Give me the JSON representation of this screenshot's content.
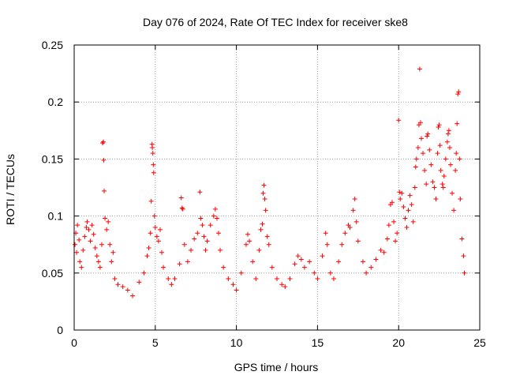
{
  "chart_data": {
    "type": "scatter",
    "title": "Day 076 of 2024, Rate Of TEC Index for receiver ske8",
    "xlabel": "GPS time / hours",
    "ylabel": "ROTI / TECUs",
    "xlim": [
      0,
      25
    ],
    "ylim": [
      0,
      0.25
    ],
    "x_ticks": [
      0,
      5,
      10,
      15,
      20,
      25
    ],
    "x_tick_labels": [
      "0",
      "5",
      "10",
      "15",
      "20",
      "25"
    ],
    "y_ticks": [
      0,
      0.05,
      0.1,
      0.15,
      0.2,
      0.25
    ],
    "y_tick_labels": [
      "0",
      "0.05",
      "0.1",
      "0.15",
      "0.2",
      "0.25"
    ],
    "grid": true,
    "marker": "+",
    "color": "#ff0000",
    "series": [
      {
        "name": "ROTI",
        "points": [
          [
            0.05,
            0.075
          ],
          [
            0.1,
            0.085
          ],
          [
            0.15,
            0.068
          ],
          [
            0.2,
            0.092
          ],
          [
            0.3,
            0.079
          ],
          [
            0.35,
            0.06
          ],
          [
            0.45,
            0.055
          ],
          [
            0.55,
            0.07
          ],
          [
            0.65,
            0.082
          ],
          [
            0.75,
            0.09
          ],
          [
            0.8,
            0.095
          ],
          [
            0.9,
            0.088
          ],
          [
            1.0,
            0.078
          ],
          [
            1.1,
            0.092
          ],
          [
            1.2,
            0.084
          ],
          [
            1.3,
            0.072
          ],
          [
            1.4,
            0.065
          ],
          [
            1.5,
            0.06
          ],
          [
            1.6,
            0.055
          ],
          [
            1.7,
            0.075
          ],
          [
            1.75,
            0.164
          ],
          [
            1.8,
            0.165
          ],
          [
            1.82,
            0.149
          ],
          [
            1.85,
            0.122
          ],
          [
            1.9,
            0.098
          ],
          [
            2.0,
            0.088
          ],
          [
            2.1,
            0.095
          ],
          [
            2.2,
            0.075
          ],
          [
            2.3,
            0.06
          ],
          [
            2.4,
            0.068
          ],
          [
            2.5,
            0.045
          ],
          [
            2.7,
            0.04
          ],
          [
            3.0,
            0.038
          ],
          [
            3.3,
            0.035
          ],
          [
            3.6,
            0.03
          ],
          [
            4.0,
            0.042
          ],
          [
            4.3,
            0.05
          ],
          [
            4.5,
            0.065
          ],
          [
            4.6,
            0.072
          ],
          [
            4.7,
            0.085
          ],
          [
            4.75,
            0.113
          ],
          [
            4.8,
            0.163
          ],
          [
            4.82,
            0.16
          ],
          [
            4.85,
            0.155
          ],
          [
            4.88,
            0.145
          ],
          [
            4.9,
            0.138
          ],
          [
            4.95,
            0.1
          ],
          [
            5.0,
            0.09
          ],
          [
            5.1,
            0.082
          ],
          [
            5.2,
            0.078
          ],
          [
            5.3,
            0.088
          ],
          [
            5.4,
            0.068
          ],
          [
            5.5,
            0.055
          ],
          [
            5.8,
            0.045
          ],
          [
            6.0,
            0.04
          ],
          [
            6.2,
            0.045
          ],
          [
            6.5,
            0.058
          ],
          [
            6.6,
            0.116
          ],
          [
            6.65,
            0.107
          ],
          [
            6.7,
            0.106
          ],
          [
            6.8,
            0.075
          ],
          [
            7.0,
            0.06
          ],
          [
            7.2,
            0.07
          ],
          [
            7.4,
            0.08
          ],
          [
            7.6,
            0.085
          ],
          [
            7.75,
            0.121
          ],
          [
            7.8,
            0.098
          ],
          [
            7.9,
            0.092
          ],
          [
            8.0,
            0.082
          ],
          [
            8.1,
            0.07
          ],
          [
            8.2,
            0.078
          ],
          [
            8.4,
            0.092
          ],
          [
            8.6,
            0.1
          ],
          [
            8.7,
            0.106
          ],
          [
            8.8,
            0.098
          ],
          [
            8.9,
            0.085
          ],
          [
            9.0,
            0.07
          ],
          [
            9.2,
            0.055
          ],
          [
            9.5,
            0.045
          ],
          [
            9.8,
            0.04
          ],
          [
            10.0,
            0.035
          ],
          [
            10.3,
            0.05
          ],
          [
            10.6,
            0.075
          ],
          [
            10.7,
            0.084
          ],
          [
            10.8,
            0.078
          ],
          [
            11.0,
            0.06
          ],
          [
            11.2,
            0.045
          ],
          [
            11.4,
            0.07
          ],
          [
            11.5,
            0.088
          ],
          [
            11.6,
            0.093
          ],
          [
            11.65,
            0.12
          ],
          [
            11.7,
            0.127
          ],
          [
            11.75,
            0.115
          ],
          [
            11.8,
            0.105
          ],
          [
            11.9,
            0.082
          ],
          [
            12.0,
            0.075
          ],
          [
            12.2,
            0.055
          ],
          [
            12.5,
            0.045
          ],
          [
            12.8,
            0.04
          ],
          [
            13.0,
            0.038
          ],
          [
            13.3,
            0.045
          ],
          [
            13.6,
            0.058
          ],
          [
            13.8,
            0.065
          ],
          [
            14.0,
            0.062
          ],
          [
            14.2,
            0.055
          ],
          [
            14.5,
            0.06
          ],
          [
            14.8,
            0.05
          ],
          [
            15.0,
            0.045
          ],
          [
            15.3,
            0.065
          ],
          [
            15.5,
            0.085
          ],
          [
            15.6,
            0.075
          ],
          [
            15.8,
            0.05
          ],
          [
            16.0,
            0.045
          ],
          [
            16.3,
            0.06
          ],
          [
            16.5,
            0.075
          ],
          [
            16.7,
            0.085
          ],
          [
            16.9,
            0.092
          ],
          [
            17.0,
            0.09
          ],
          [
            17.2,
            0.105
          ],
          [
            17.3,
            0.115
          ],
          [
            17.4,
            0.095
          ],
          [
            17.5,
            0.078
          ],
          [
            17.8,
            0.06
          ],
          [
            18.0,
            0.05
          ],
          [
            18.3,
            0.055
          ],
          [
            18.6,
            0.062
          ],
          [
            18.9,
            0.07
          ],
          [
            19.1,
            0.068
          ],
          [
            19.3,
            0.08
          ],
          [
            19.4,
            0.092
          ],
          [
            19.5,
            0.11
          ],
          [
            19.6,
            0.112
          ],
          [
            19.7,
            0.095
          ],
          [
            19.8,
            0.078
          ],
          [
            19.9,
            0.085
          ],
          [
            20.0,
            0.184
          ],
          [
            20.05,
            0.121
          ],
          [
            20.1,
            0.115
          ],
          [
            20.2,
            0.12
          ],
          [
            20.3,
            0.108
          ],
          [
            20.4,
            0.098
          ],
          [
            20.5,
            0.09
          ],
          [
            20.6,
            0.105
          ],
          [
            20.7,
            0.118
          ],
          [
            20.8,
            0.11
          ],
          [
            20.9,
            0.095
          ],
          [
            21.0,
            0.125
          ],
          [
            21.05,
            0.143
          ],
          [
            21.1,
            0.15
          ],
          [
            21.2,
            0.16
          ],
          [
            21.25,
            0.18
          ],
          [
            21.3,
            0.229
          ],
          [
            21.35,
            0.182
          ],
          [
            21.4,
            0.168
          ],
          [
            21.5,
            0.155
          ],
          [
            21.6,
            0.14
          ],
          [
            21.7,
            0.128
          ],
          [
            21.75,
            0.17
          ],
          [
            21.8,
            0.172
          ],
          [
            21.9,
            0.158
          ],
          [
            22.0,
            0.145
          ],
          [
            22.1,
            0.13
          ],
          [
            22.2,
            0.125
          ],
          [
            22.3,
            0.115
          ],
          [
            22.4,
            0.155
          ],
          [
            22.45,
            0.178
          ],
          [
            22.5,
            0.18
          ],
          [
            22.55,
            0.162
          ],
          [
            22.6,
            0.14
          ],
          [
            22.7,
            0.128
          ],
          [
            22.75,
            0.125
          ],
          [
            22.8,
            0.135
          ],
          [
            22.9,
            0.15
          ],
          [
            23.0,
            0.165
          ],
          [
            23.05,
            0.172
          ],
          [
            23.1,
            0.175
          ],
          [
            23.15,
            0.16
          ],
          [
            23.2,
            0.145
          ],
          [
            23.3,
            0.12
          ],
          [
            23.4,
            0.105
          ],
          [
            23.5,
            0.14
          ],
          [
            23.55,
            0.155
          ],
          [
            23.6,
            0.181
          ],
          [
            23.65,
            0.207
          ],
          [
            23.7,
            0.209
          ],
          [
            23.75,
            0.15
          ],
          [
            23.8,
            0.115
          ],
          [
            23.9,
            0.08
          ],
          [
            24.0,
            0.065
          ],
          [
            24.05,
            0.05
          ]
        ]
      }
    ]
  }
}
